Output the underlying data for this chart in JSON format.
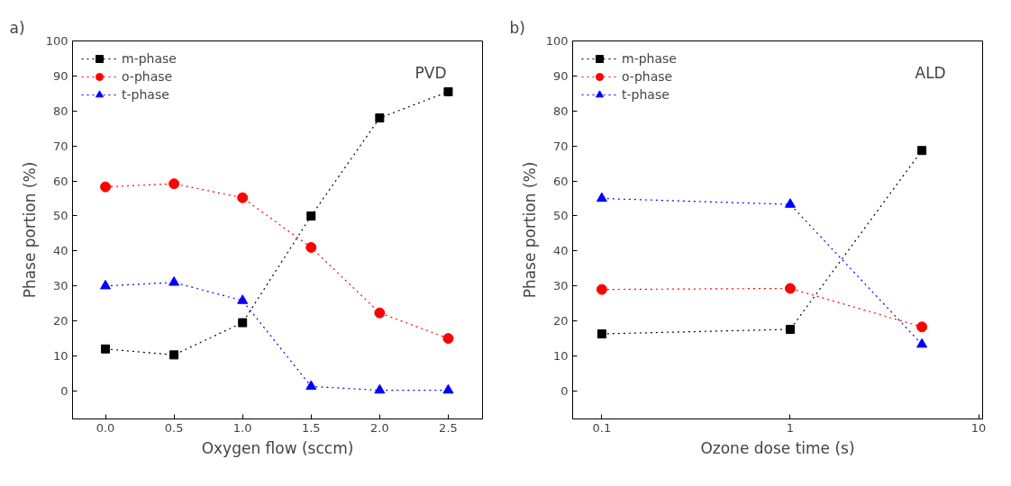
{
  "chart_data": [
    {
      "type": "line",
      "annotations": [
        "a)",
        "PVD"
      ],
      "xlabel": "Oxygen flow (sccm)",
      "ylabel": "Phase portion (%)",
      "x": [
        0,
        0.5,
        1,
        1.5,
        2,
        2.5
      ],
      "xlim": [
        -0.24,
        2.75
      ],
      "xticks": [
        {
          "value": 0,
          "label": "0.0"
        },
        0.5,
        {
          "value": 1,
          "label": "1.0"
        },
        1.5,
        {
          "value": 2,
          "label": "2.0"
        },
        2.5
      ],
      "ylim": [
        -8,
        100
      ],
      "yticks": [
        0,
        10,
        20,
        30,
        40,
        50,
        60,
        70,
        80,
        90,
        100
      ],
      "grid": false,
      "legend": "top left",
      "line_style": "dotted",
      "series": [
        {
          "name": "m-phase",
          "color": "#000000",
          "marker": "square",
          "values": [
            12,
            10.3,
            19.5,
            50,
            78,
            85.5
          ]
        },
        {
          "name": "o-phase",
          "color": "#ff0000",
          "marker": "circle",
          "values": [
            58.3,
            59.2,
            55.2,
            41,
            22.3,
            15
          ]
        },
        {
          "name": "t-phase",
          "color": "#0000ff",
          "marker": "triangle",
          "values": [
            30,
            31,
            25.8,
            1.3,
            0.2,
            0.2
          ]
        }
      ]
    },
    {
      "type": "line",
      "annotations": [
        "b)",
        "ALD"
      ],
      "xlabel": "Ozone dose time (s)",
      "ylabel": "Phase portion (%)",
      "log": "x",
      "x": [
        0.1,
        1,
        5
      ],
      "xlim": [
        0.07,
        10.5
      ],
      "xticks": [
        0.1,
        1,
        10
      ],
      "ylim": [
        -8,
        100
      ],
      "yticks": [
        0,
        10,
        20,
        30,
        40,
        50,
        60,
        70,
        80,
        90,
        100
      ],
      "grid": false,
      "legend": "top left",
      "line_style": "dotted",
      "series": [
        {
          "name": "m-phase",
          "color": "#000000",
          "marker": "square",
          "values": [
            16.3,
            17.6,
            68.7
          ]
        },
        {
          "name": "o-phase",
          "color": "#ff0000",
          "marker": "circle",
          "values": [
            29,
            29.3,
            18.3
          ]
        },
        {
          "name": "t-phase",
          "color": "#0000ff",
          "marker": "triangle",
          "values": [
            55,
            53.3,
            13.3
          ]
        }
      ]
    }
  ]
}
